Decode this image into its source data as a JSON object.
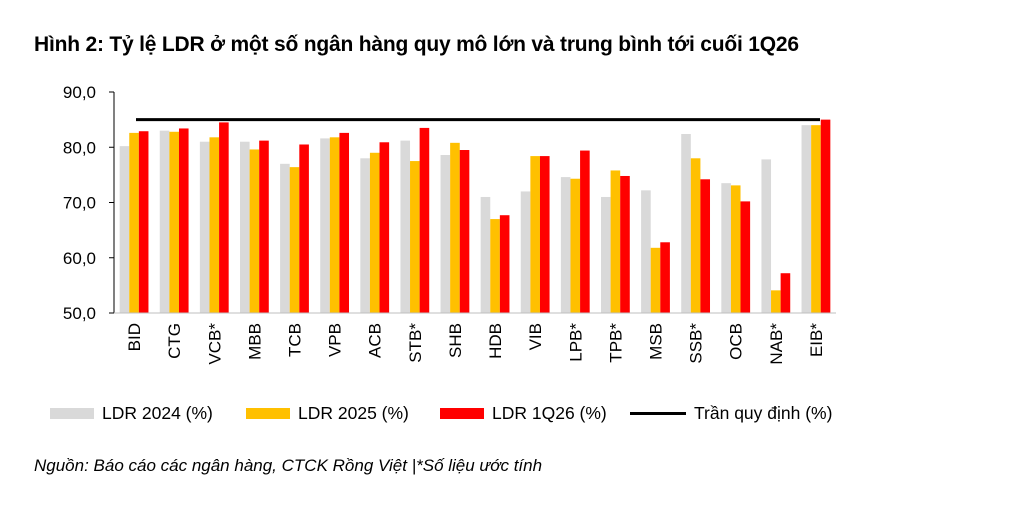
{
  "title": "Hình 2: Tỷ lệ LDR ở một số ngân hàng quy mô lớn và trung bình tới cuối 1Q26",
  "source": "Nguồn: Báo cáo các ngân hàng, CTCK Rồng Việt |*Số liệu ước tính",
  "chart_data": {
    "type": "bar",
    "categories": [
      "BID",
      "CTG",
      "VCB*",
      "MBB",
      "TCB",
      "VPB",
      "ACB",
      "STB*",
      "SHB",
      "HDB",
      "VIB",
      "LPB*",
      "TPB*",
      "MSB",
      "SSB*",
      "OCB",
      "NAB*",
      "EIB*"
    ],
    "series": [
      {
        "name": "LDR 2024 (%)",
        "color": "#d9d9d9",
        "values": [
          80.2,
          83.0,
          81.0,
          81.0,
          77.0,
          81.6,
          78.0,
          81.2,
          78.6,
          71.0,
          72.0,
          74.6,
          71.0,
          72.2,
          82.4,
          73.5,
          77.8,
          84.0
        ]
      },
      {
        "name": "LDR 2025 (%)",
        "color": "#ffc000",
        "values": [
          82.6,
          82.8,
          81.8,
          79.6,
          76.4,
          81.8,
          79.0,
          77.5,
          80.8,
          67.0,
          78.4,
          74.3,
          75.8,
          61.8,
          78.0,
          73.1,
          54.1,
          84.0
        ]
      },
      {
        "name": "LDR 1Q26 (%)",
        "color": "#ff0000",
        "values": [
          82.9,
          83.4,
          84.5,
          81.2,
          80.5,
          82.6,
          80.9,
          83.5,
          79.5,
          67.7,
          78.4,
          79.4,
          74.8,
          62.8,
          74.2,
          70.2,
          57.2,
          85.0
        ]
      }
    ],
    "threshold": {
      "name": "Trần quy định (%)",
      "value": 85.0,
      "color": "#000000"
    },
    "ylim": [
      50.0,
      90.0
    ],
    "yticks": [
      "50,0",
      "60,0",
      "70,0",
      "80,0",
      "90,0"
    ],
    "ytick_values": [
      50,
      60,
      70,
      80,
      90
    ],
    "xlabel": "",
    "ylabel": "",
    "grid": false,
    "legend_position": "bottom"
  }
}
